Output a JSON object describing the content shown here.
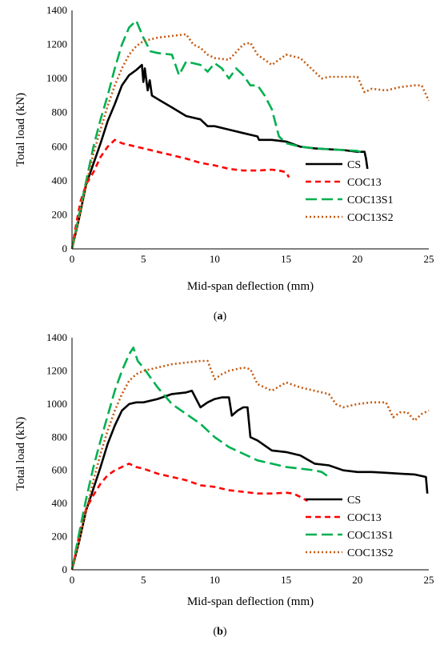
{
  "chart_data": [
    {
      "type": "line",
      "caption_letter": "a",
      "xlabel": "Mid-span deflection (mm)",
      "ylabel": "Total load (kN)",
      "xlim": [
        0,
        25
      ],
      "ylim": [
        0,
        1400
      ],
      "xticks": [
        0,
        5,
        10,
        15,
        20,
        25
      ],
      "yticks": [
        0,
        200,
        400,
        600,
        800,
        1000,
        1200,
        1400
      ],
      "grid": false,
      "legend_position": "right",
      "series": [
        {
          "name": "CS",
          "color": "#000000",
          "dash": "solid",
          "x": [
            0,
            0.5,
            1.0,
            1.5,
            2.0,
            2.5,
            3.0,
            3.5,
            4.0,
            4.5,
            4.9,
            5.0,
            5.1,
            5.3,
            5.45,
            5.6,
            6.0,
            7.0,
            8.0,
            9.0,
            9.5,
            10.0,
            11.0,
            12.0,
            13.0,
            13.1,
            14.0,
            15.0,
            16.0,
            17.0,
            18.0,
            19.0,
            20.0,
            20.5,
            20.6,
            20.7
          ],
          "y": [
            0,
            180,
            380,
            500,
            620,
            750,
            850,
            960,
            1020,
            1050,
            1080,
            980,
            1060,
            930,
            990,
            900,
            880,
            830,
            780,
            760,
            720,
            720,
            700,
            680,
            660,
            640,
            640,
            630,
            600,
            590,
            585,
            580,
            570,
            570,
            530,
            470
          ]
        },
        {
          "name": "COC13",
          "color": "#ff0000",
          "dash": "dashed",
          "x": [
            0,
            0.3,
            0.6,
            1.0,
            1.5,
            2.0,
            2.5,
            3.0,
            3.5,
            4.0,
            5.0,
            6.0,
            7.0,
            8.0,
            9.0,
            10.0,
            11.0,
            12.0,
            13.0,
            14.0,
            14.5,
            15.0,
            15.2
          ],
          "y": [
            0,
            150,
            280,
            380,
            450,
            540,
            600,
            640,
            620,
            610,
            590,
            570,
            550,
            530,
            505,
            490,
            470,
            460,
            460,
            465,
            460,
            450,
            420
          ]
        },
        {
          "name": "COC13S1",
          "color": "#00b050",
          "dash": "longdash",
          "x": [
            0,
            0.5,
            1.0,
            1.5,
            2.0,
            2.5,
            3.0,
            3.5,
            4.0,
            4.5,
            5.0,
            5.5,
            6.0,
            7.0,
            7.5,
            8.0,
            9.0,
            9.5,
            10.0,
            10.5,
            11.0,
            11.5,
            12.0,
            12.5,
            13.0,
            13.5,
            14.0,
            14.5,
            15.0,
            16.0,
            17.0,
            18.0,
            19.0,
            20.0,
            20.5
          ],
          "y": [
            0,
            200,
            400,
            600,
            760,
            900,
            1060,
            1200,
            1300,
            1340,
            1240,
            1160,
            1150,
            1140,
            1020,
            1100,
            1080,
            1040,
            1090,
            1060,
            1000,
            1060,
            1020,
            960,
            960,
            900,
            820,
            660,
            620,
            600,
            590,
            585,
            580,
            575,
            560
          ]
        },
        {
          "name": "COC13S2",
          "color": "#c55a11",
          "dash": "dotted",
          "x": [
            0,
            0.5,
            1.0,
            1.5,
            2.0,
            2.5,
            3.0,
            3.5,
            4.0,
            4.5,
            5.0,
            6.0,
            7.0,
            8.0,
            8.5,
            9.0,
            9.5,
            10.0,
            11.0,
            12.0,
            12.5,
            13.0,
            14.0,
            15.0,
            16.0,
            17.0,
            17.5,
            18.0,
            19.0,
            20.0,
            20.5,
            21.0,
            22.0,
            23.0,
            24.0,
            24.5,
            25.0
          ],
          "y": [
            0,
            180,
            380,
            560,
            700,
            840,
            960,
            1060,
            1140,
            1190,
            1220,
            1240,
            1250,
            1260,
            1200,
            1180,
            1140,
            1120,
            1110,
            1200,
            1210,
            1140,
            1080,
            1140,
            1120,
            1040,
            1000,
            1010,
            1010,
            1010,
            920,
            940,
            930,
            950,
            960,
            960,
            870
          ]
        }
      ]
    },
    {
      "type": "line",
      "caption_letter": "b",
      "xlabel": "Mid-span deflection (mm)",
      "ylabel": "Total load (kN)",
      "xlim": [
        0,
        25
      ],
      "ylim": [
        0,
        1400
      ],
      "xticks": [
        0,
        5,
        10,
        15,
        20,
        25
      ],
      "yticks": [
        0,
        200,
        400,
        600,
        800,
        1000,
        1200,
        1400
      ],
      "grid": false,
      "legend_position": "lower-right",
      "series": [
        {
          "name": "CS",
          "color": "#000000",
          "dash": "solid",
          "x": [
            0,
            0.5,
            1.0,
            1.5,
            2.0,
            2.5,
            3.0,
            3.5,
            4.0,
            4.5,
            5.0,
            6.0,
            7.0,
            8.0,
            8.4,
            9.0,
            9.5,
            10.0,
            10.5,
            11.0,
            11.2,
            11.6,
            12.0,
            12.3,
            12.5,
            13.0,
            14.0,
            15.0,
            16.0,
            17.0,
            18.0,
            19.0,
            20.0,
            21.0,
            22.0,
            23.0,
            24.0,
            24.8,
            24.9
          ],
          "y": [
            0,
            170,
            360,
            490,
            620,
            760,
            870,
            960,
            1000,
            1010,
            1010,
            1030,
            1060,
            1070,
            1080,
            980,
            1010,
            1030,
            1040,
            1040,
            930,
            960,
            980,
            980,
            800,
            780,
            720,
            710,
            690,
            640,
            630,
            600,
            590,
            590,
            585,
            580,
            575,
            560,
            460
          ]
        },
        {
          "name": "COC13",
          "color": "#ff0000",
          "dash": "dashed",
          "x": [
            0,
            0.3,
            0.6,
            1.0,
            1.5,
            2.0,
            2.5,
            3.0,
            3.5,
            4.0,
            4.5,
            5.0,
            6.0,
            7.0,
            8.0,
            9.0,
            10.0,
            11.0,
            12.0,
            13.0,
            14.0,
            15.0,
            15.5,
            16.0,
            16.5
          ],
          "y": [
            0,
            120,
            250,
            370,
            450,
            520,
            570,
            600,
            620,
            640,
            620,
            610,
            580,
            560,
            540,
            510,
            500,
            480,
            470,
            460,
            460,
            465,
            460,
            440,
            415
          ]
        },
        {
          "name": "COC13S1",
          "color": "#00b050",
          "dash": "longdash",
          "x": [
            0,
            0.5,
            1.0,
            1.5,
            2.0,
            2.5,
            3.0,
            3.5,
            4.0,
            4.3,
            4.6,
            5.0,
            5.5,
            6.0,
            7.0,
            8.0,
            9.0,
            10.0,
            11.0,
            12.0,
            13.0,
            14.0,
            15.0,
            16.0,
            17.0,
            17.5,
            18.0
          ],
          "y": [
            0,
            220,
            430,
            620,
            780,
            930,
            1080,
            1200,
            1300,
            1340,
            1260,
            1220,
            1160,
            1100,
            1000,
            940,
            880,
            800,
            740,
            700,
            660,
            640,
            620,
            610,
            600,
            590,
            560
          ]
        },
        {
          "name": "COC13S2",
          "color": "#c55a11",
          "dash": "dotted",
          "x": [
            0,
            0.5,
            1.0,
            1.5,
            2.0,
            2.5,
            3.0,
            3.5,
            4.0,
            4.5,
            5.0,
            6.0,
            7.0,
            8.0,
            9.0,
            9.5,
            10.0,
            10.5,
            11.0,
            12.0,
            12.5,
            13.0,
            14.0,
            15.0,
            16.0,
            17.0,
            18.0,
            18.5,
            19.0,
            20.0,
            21.0,
            22.0,
            22.5,
            23.0,
            23.5,
            24.0,
            24.5,
            25.0
          ],
          "y": [
            0,
            170,
            360,
            540,
            700,
            840,
            960,
            1060,
            1140,
            1180,
            1200,
            1220,
            1240,
            1250,
            1260,
            1260,
            1150,
            1180,
            1200,
            1220,
            1210,
            1120,
            1080,
            1130,
            1100,
            1080,
            1060,
            1000,
            980,
            1000,
            1010,
            1010,
            920,
            950,
            950,
            900,
            940,
            960
          ]
        }
      ]
    }
  ]
}
